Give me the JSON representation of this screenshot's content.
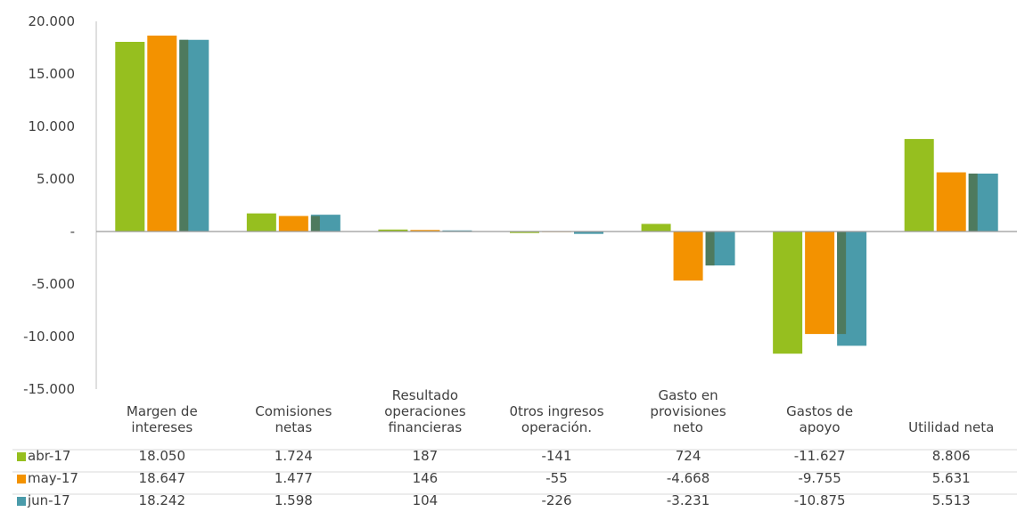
{
  "chart_data": {
    "type": "bar",
    "categories": [
      [
        "Margen de",
        "intereses"
      ],
      [
        "Comisiones",
        "netas"
      ],
      [
        "Resultado",
        "operaciones",
        "financieras"
      ],
      [
        "0tros ingresos",
        "operación."
      ],
      [
        "Gasto en",
        "provisiones",
        "neto"
      ],
      [
        "Gastos de",
        "apoyo"
      ],
      [
        "Utilidad neta"
      ]
    ],
    "ylim": [
      -15000,
      20000
    ],
    "yticks": [
      {
        "value": 20000,
        "label": "20.000"
      },
      {
        "value": 15000,
        "label": "15.000"
      },
      {
        "value": 10000,
        "label": "10.000"
      },
      {
        "value": 5000,
        "label": "5.000"
      },
      {
        "value": 0,
        "label": "-"
      },
      {
        "value": -5000,
        "label": "-5.000"
      },
      {
        "value": -10000,
        "label": "-10.000"
      },
      {
        "value": -15000,
        "label": "-15.000"
      }
    ],
    "series": [
      {
        "name": "abr-17",
        "color": "#96BF1F",
        "values": [
          18050,
          1724,
          187,
          -141,
          724,
          -11627,
          8806
        ],
        "labels": [
          "18.050",
          "1.724",
          "187",
          "-141",
          "724",
          "-11.627",
          "8.806"
        ]
      },
      {
        "name": "may-17",
        "color": "#F39200",
        "values": [
          18647,
          1477,
          146,
          -55,
          -4668,
          -9755,
          5631
        ],
        "labels": [
          "18.647",
          "1.477",
          "146",
          "-55",
          "-4.668",
          "-9.755",
          "5.631"
        ]
      },
      {
        "name": "jun-17",
        "color": "#4A9BAA",
        "values": [
          18242,
          1598,
          104,
          -226,
          -3231,
          -10875,
          5513
        ],
        "labels": [
          "18.242",
          "1.598",
          "104",
          "-226",
          "-3.231",
          "-10.875",
          "5.513"
        ]
      }
    ],
    "overlap_color": "#4E7A5E",
    "grid": false,
    "legend": "data-table"
  }
}
